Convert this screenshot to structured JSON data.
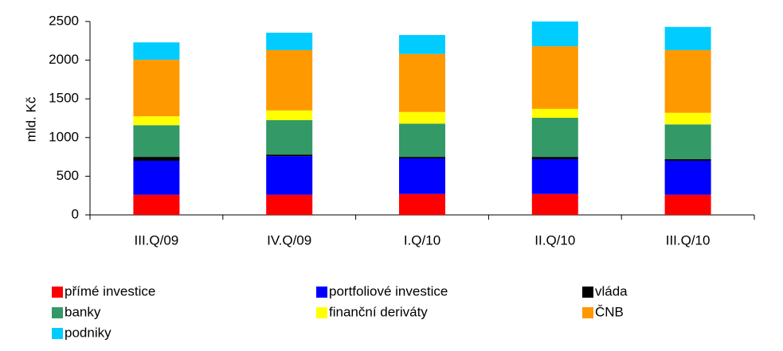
{
  "chart_data": {
    "type": "stacked_bar",
    "y_label": "mld. Kč",
    "categories": [
      "III.Q/09",
      "IV.Q/09",
      "I.Q/10",
      "II.Q/10",
      "III.Q/10"
    ],
    "series": [
      {
        "name": "přímé investice",
        "color": "#ff0000",
        "values": [
          260,
          260,
          270,
          270,
          260
        ]
      },
      {
        "name": "portfoliové investice",
        "color": "#0000ff",
        "values": [
          440,
          500,
          460,
          450,
          440
        ]
      },
      {
        "name": "vláda",
        "color": "#000000",
        "values": [
          50,
          20,
          20,
          30,
          20
        ]
      },
      {
        "name": "banky",
        "color": "#339966",
        "values": [
          410,
          445,
          430,
          505,
          450
        ]
      },
      {
        "name": "finanční deriváty",
        "color": "#ffff00",
        "values": [
          115,
          125,
          150,
          115,
          150
        ]
      },
      {
        "name": "ČNB",
        "color": "#ff9900",
        "values": [
          730,
          780,
          750,
          810,
          810
        ]
      },
      {
        "name": "podniky",
        "color": "#00ccff",
        "values": [
          225,
          225,
          245,
          320,
          300
        ]
      }
    ],
    "ylim": [
      0,
      2500
    ],
    "yticks": [
      0,
      500,
      1000,
      1500,
      2000,
      2500
    ]
  }
}
